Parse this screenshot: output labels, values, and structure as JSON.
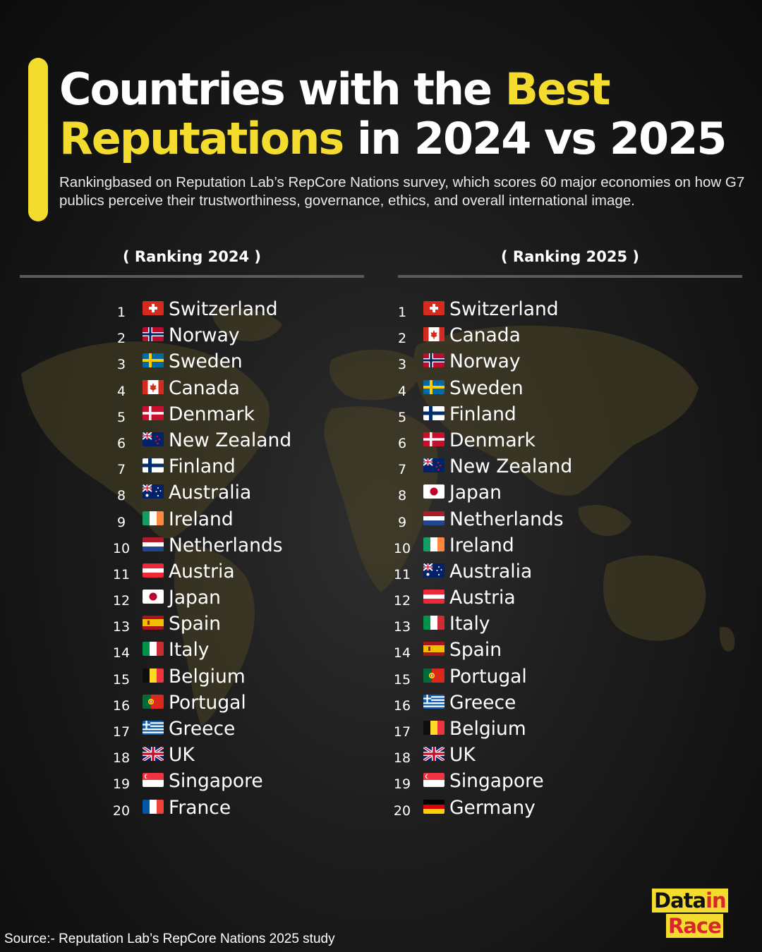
{
  "header": {
    "title_line1_plain": "Countries with the ",
    "title_line1_highlight": "Best",
    "title_line2_highlight": "Reputations",
    "title_line2_plain": " in 2024 vs 2025",
    "subtitle": "Rankingbased on Reputation Lab’s RepCore Nations survey, which scores 60 major economies on how G7 publics perceive their trustworthiness, governance, ethics, and overall international image."
  },
  "colors": {
    "accent": "#f4dc2e",
    "logo_red": "#d8262c",
    "map": "#4b4324"
  },
  "columns": [
    {
      "heading": "( Ranking 2024 )",
      "items": [
        {
          "rank": "1",
          "country": "Switzerland",
          "flag": "ch"
        },
        {
          "rank": "2",
          "country": "Norway",
          "flag": "no"
        },
        {
          "rank": "3",
          "country": "Sweden",
          "flag": "se"
        },
        {
          "rank": "4",
          "country": "Canada",
          "flag": "ca"
        },
        {
          "rank": "5",
          "country": "Denmark",
          "flag": "dk"
        },
        {
          "rank": "6",
          "country": "New Zealand",
          "flag": "nz"
        },
        {
          "rank": "7",
          "country": "Finland",
          "flag": "fi"
        },
        {
          "rank": "8",
          "country": "Australia",
          "flag": "au"
        },
        {
          "rank": "9",
          "country": "Ireland",
          "flag": "ie"
        },
        {
          "rank": "10",
          "country": "Netherlands",
          "flag": "nl"
        },
        {
          "rank": "11",
          "country": "Austria",
          "flag": "at"
        },
        {
          "rank": "12",
          "country": "Japan",
          "flag": "jp"
        },
        {
          "rank": "13",
          "country": "Spain",
          "flag": "es"
        },
        {
          "rank": "14",
          "country": "Italy",
          "flag": "it"
        },
        {
          "rank": "15",
          "country": "Belgium",
          "flag": "be"
        },
        {
          "rank": "16",
          "country": "Portugal",
          "flag": "pt"
        },
        {
          "rank": "17",
          "country": "Greece",
          "flag": "gr"
        },
        {
          "rank": "18",
          "country": "UK",
          "flag": "gb"
        },
        {
          "rank": "19",
          "country": "Singapore",
          "flag": "sg"
        },
        {
          "rank": "20",
          "country": "France",
          "flag": "fr"
        }
      ]
    },
    {
      "heading": "( Ranking 2025 )",
      "items": [
        {
          "rank": "1",
          "country": "Switzerland",
          "flag": "ch"
        },
        {
          "rank": "2",
          "country": "Canada",
          "flag": "ca"
        },
        {
          "rank": "3",
          "country": "Norway",
          "flag": "no"
        },
        {
          "rank": "4",
          "country": "Sweden",
          "flag": "se"
        },
        {
          "rank": "5",
          "country": "Finland",
          "flag": "fi"
        },
        {
          "rank": "6",
          "country": "Denmark",
          "flag": "dk"
        },
        {
          "rank": "7",
          "country": "New Zealand",
          "flag": "nz"
        },
        {
          "rank": "8",
          "country": "Japan",
          "flag": "jp"
        },
        {
          "rank": "9",
          "country": "Netherlands",
          "flag": "nl"
        },
        {
          "rank": "10",
          "country": "Ireland",
          "flag": "ie"
        },
        {
          "rank": "11",
          "country": "Australia",
          "flag": "au"
        },
        {
          "rank": "12",
          "country": "Austria",
          "flag": "at"
        },
        {
          "rank": "13",
          "country": "Italy",
          "flag": "it"
        },
        {
          "rank": "14",
          "country": "Spain",
          "flag": "es"
        },
        {
          "rank": "15",
          "country": "Portugal",
          "flag": "pt"
        },
        {
          "rank": "16",
          "country": "Greece",
          "flag": "gr"
        },
        {
          "rank": "17",
          "country": "Belgium",
          "flag": "be"
        },
        {
          "rank": "18",
          "country": "UK",
          "flag": "gb"
        },
        {
          "rank": "19",
          "country": "Singapore",
          "flag": "sg"
        },
        {
          "rank": "20",
          "country": "Germany",
          "flag": "de"
        }
      ]
    }
  ],
  "footer": {
    "source": "Source:- Reputation Lab’s RepCore Nations 2025 study"
  },
  "logo": {
    "part1": "Data",
    "part2": "in",
    "part3": "Race"
  }
}
